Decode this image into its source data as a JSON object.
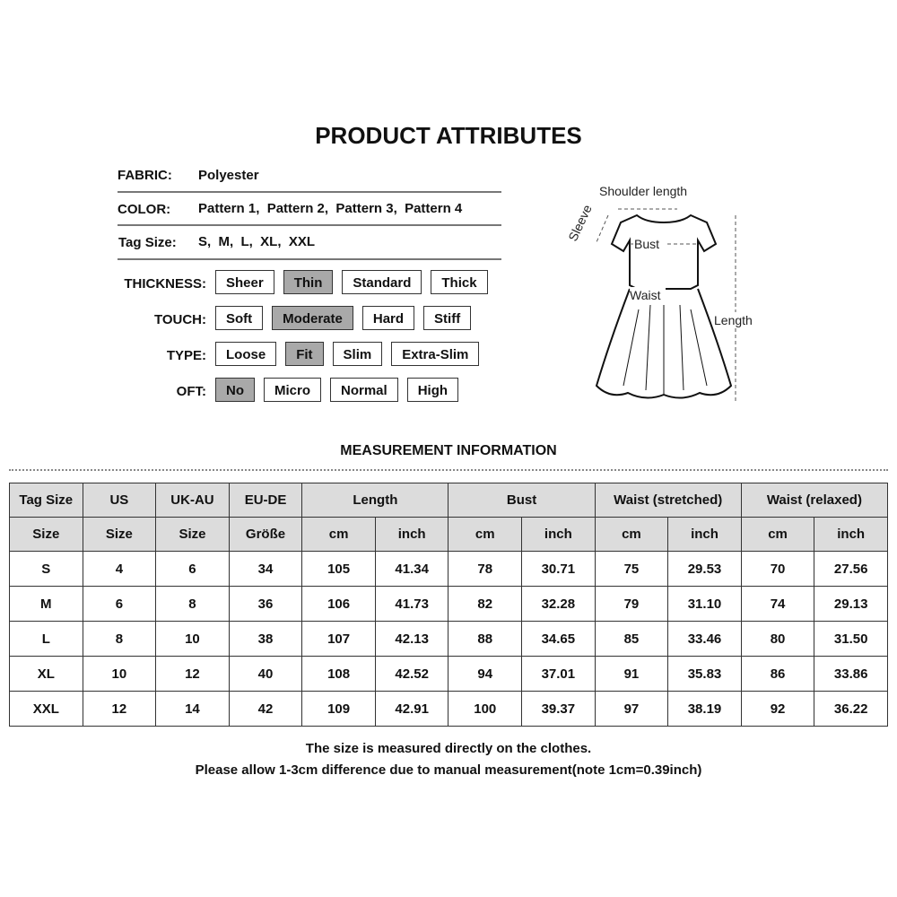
{
  "title": "PRODUCT ATTRIBUTES",
  "attributes": {
    "fabric": {
      "label": "FABRIC:",
      "value": "Polyester"
    },
    "color": {
      "label": "COLOR:",
      "value": "Pattern 1,  Pattern 2,  Pattern 3,  Pattern 4"
    },
    "tag_size": {
      "label": "Tag Size:",
      "value": "S,  M,  L,  XL,  XXL"
    }
  },
  "options": [
    {
      "label": "THICKNESS:",
      "items": [
        "Sheer",
        "Thin",
        "Standard",
        "Thick"
      ],
      "selected": "Thin"
    },
    {
      "label": "TOUCH:",
      "items": [
        "Soft",
        "Moderate",
        "Hard",
        "Stiff"
      ],
      "selected": "Moderate"
    },
    {
      "label": "TYPE:",
      "items": [
        "Loose",
        "Fit",
        "Slim",
        "Extra-Slim"
      ],
      "selected": "Fit"
    },
    {
      "label": "OFT:",
      "items": [
        "No",
        "Micro",
        "Normal",
        "High"
      ],
      "selected": "No"
    }
  ],
  "diagram": {
    "shoulder": "Shoulder length",
    "sleeve": "Sleeve",
    "bust": "Bust",
    "waist": "Waist",
    "length": "Length"
  },
  "measurement_title": "MEASUREMENT INFORMATION",
  "table": {
    "header1": [
      "Tag Size",
      "US",
      "UK-AU",
      "EU-DE",
      "Length",
      "Bust",
      "Waist  (stretched)",
      "Waist  (relaxed)"
    ],
    "header2": [
      "Size",
      "Size",
      "Size",
      "Größe",
      "cm",
      "inch",
      "cm",
      "inch",
      "cm",
      "inch",
      "cm",
      "inch"
    ],
    "rows": [
      [
        "S",
        "4",
        "6",
        "34",
        "105",
        "41.34",
        "78",
        "30.71",
        "75",
        "29.53",
        "70",
        "27.56"
      ],
      [
        "M",
        "6",
        "8",
        "36",
        "106",
        "41.73",
        "82",
        "32.28",
        "79",
        "31.10",
        "74",
        "29.13"
      ],
      [
        "L",
        "8",
        "10",
        "38",
        "107",
        "42.13",
        "88",
        "34.65",
        "85",
        "33.46",
        "80",
        "31.50"
      ],
      [
        "XL",
        "10",
        "12",
        "40",
        "108",
        "42.52",
        "94",
        "37.01",
        "91",
        "35.83",
        "86",
        "33.86"
      ],
      [
        "XXL",
        "12",
        "14",
        "42",
        "109",
        "42.91",
        "100",
        "39.37",
        "97",
        "38.19",
        "92",
        "36.22"
      ]
    ]
  },
  "notes": [
    "The size is measured directly on the clothes.",
    "Please allow 1-3cm difference due to manual measurement(note 1cm=0.39inch)"
  ],
  "colors": {
    "selected": "#a9a9a9",
    "header": "#dcdcdc"
  }
}
